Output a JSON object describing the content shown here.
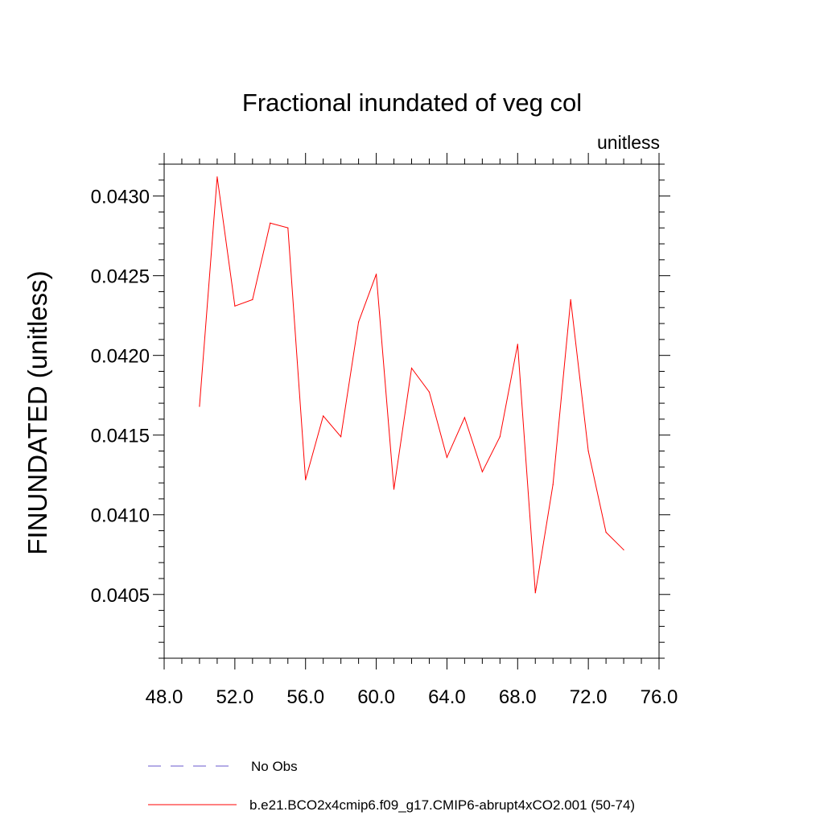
{
  "chart_data": {
    "type": "line",
    "title": "Fractional inundated of veg col",
    "subtitle": "unitless",
    "ylabel": "FINUNDATED  (unitless)",
    "xlabel": "",
    "xlim": [
      48,
      76
    ],
    "ylim": [
      0.0401,
      0.0432
    ],
    "x_ticks": [
      48,
      52,
      56,
      60,
      64,
      68,
      72,
      76
    ],
    "x_tick_labels": [
      "48.0",
      "52.0",
      "56.0",
      "60.0",
      "64.0",
      "68.0",
      "72.0",
      "76.0"
    ],
    "y_ticks": [
      0.0405,
      0.041,
      0.0415,
      0.042,
      0.0425,
      0.043
    ],
    "y_tick_labels": [
      "0.0405",
      "0.0410",
      "0.0415",
      "0.0420",
      "0.0425",
      "0.0430"
    ],
    "grid": false,
    "legend_position": "bottom",
    "series": [
      {
        "name": "No Obs",
        "color": "#6a5acd",
        "style": "dashed",
        "x": [],
        "y": []
      },
      {
        "name": "b.e21.BCO2x4cmip6.f09_g17.CMIP6-abrupt4xCO2.001 (50-74)",
        "color": "#ff0000",
        "style": "solid",
        "x": [
          50,
          51,
          52,
          53,
          54,
          55,
          56,
          57,
          58,
          59,
          60,
          61,
          62,
          63,
          64,
          65,
          66,
          67,
          68,
          69,
          70,
          71,
          72,
          73,
          74
        ],
        "y": [
          0.04168,
          0.04312,
          0.04231,
          0.04235,
          0.04283,
          0.0428,
          0.04122,
          0.04162,
          0.04149,
          0.04221,
          0.04251,
          0.04116,
          0.04192,
          0.04177,
          0.04136,
          0.04161,
          0.04127,
          0.04149,
          0.04207,
          0.04051,
          0.04119,
          0.04235,
          0.0414,
          0.04089,
          0.04078
        ]
      }
    ]
  }
}
